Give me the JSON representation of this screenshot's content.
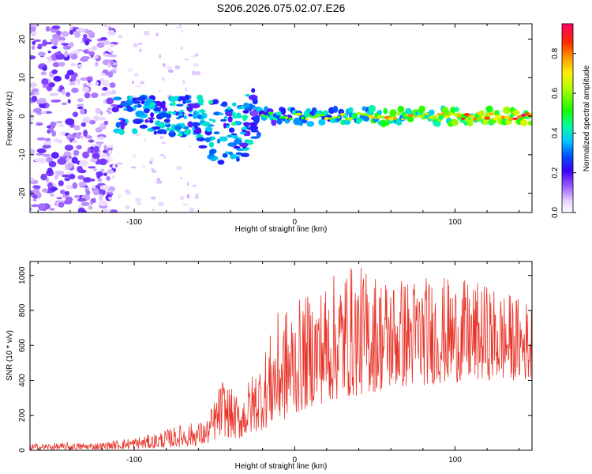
{
  "figure": {
    "title": "S206.2026.075.02.07.E26"
  },
  "chart_data": [
    {
      "type": "heatmap",
      "title": "",
      "xlabel": "Height of straight line (km)",
      "ylabel": "Frequency (Hz)",
      "xlim": [
        -165,
        148
      ],
      "ylim": [
        -25,
        24
      ],
      "xticks": [
        -100,
        0,
        100
      ],
      "yticks": [
        -20,
        -10,
        0,
        10,
        20
      ],
      "colorbar": {
        "label": "Normalized spectral amplitude",
        "range": [
          0,
          0.95
        ],
        "ticks": [
          0.0,
          0.2,
          0.4,
          0.6,
          0.8
        ]
      },
      "signal_band": {
        "frequency_hz": 0,
        "x_start": -110,
        "x_end": 148
      },
      "scattered_noise_region": {
        "x_start": -165,
        "x_end": -120,
        "frequency_range": [
          -25,
          24
        ]
      }
    },
    {
      "type": "line",
      "title": "",
      "xlabel": "Height of straight line (km)",
      "ylabel": "SNR (10 * v/v)",
      "xlim": [
        -165,
        148
      ],
      "ylim": [
        0,
        1080
      ],
      "xticks": [
        -100,
        0,
        100
      ],
      "yticks": [
        0,
        200,
        400,
        600,
        800,
        1000
      ],
      "series": [
        {
          "name": "SNR",
          "color": "#e8352a",
          "envelope": [
            {
              "x": -165,
              "low": 0,
              "high": 40
            },
            {
              "x": -120,
              "low": 5,
              "high": 45
            },
            {
              "x": -90,
              "low": 10,
              "high": 90
            },
            {
              "x": -70,
              "low": 20,
              "high": 150
            },
            {
              "x": -55,
              "low": 30,
              "high": 170
            },
            {
              "x": -45,
              "low": 80,
              "high": 420
            },
            {
              "x": -35,
              "low": 60,
              "high": 300
            },
            {
              "x": -20,
              "low": 120,
              "high": 550
            },
            {
              "x": -10,
              "low": 150,
              "high": 800
            },
            {
              "x": 10,
              "low": 250,
              "high": 900
            },
            {
              "x": 33,
              "low": 300,
              "high": 1075
            },
            {
              "x": 60,
              "low": 350,
              "high": 1000
            },
            {
              "x": 90,
              "low": 380,
              "high": 1000
            },
            {
              "x": 120,
              "low": 400,
              "high": 950
            },
            {
              "x": 148,
              "low": 400,
              "high": 850
            }
          ]
        }
      ]
    }
  ]
}
